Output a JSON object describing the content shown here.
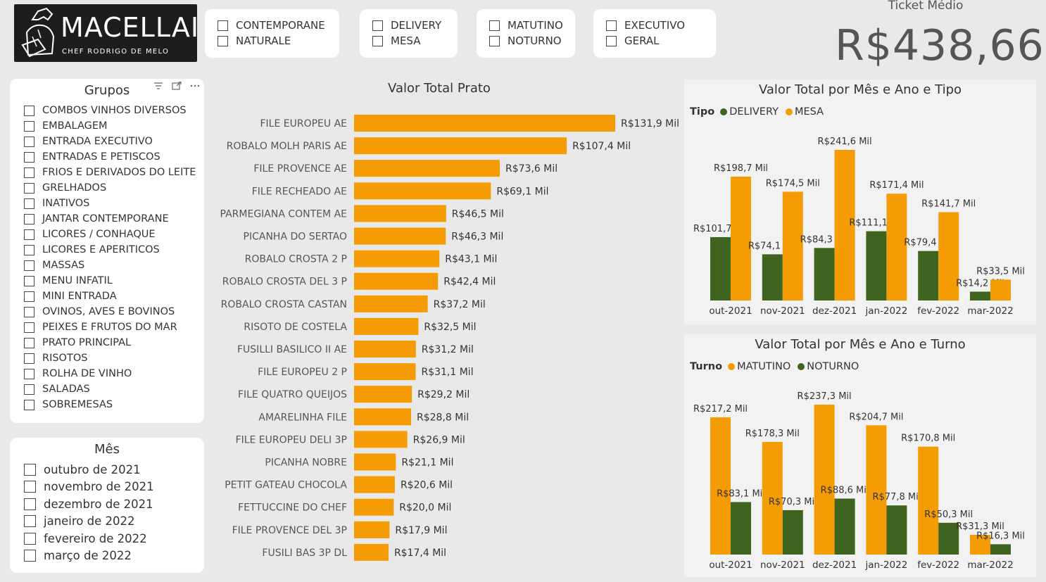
{
  "colors": {
    "orange": "#f59c05",
    "green": "#3e6420",
    "kpi_text": "#555555"
  },
  "logo": {
    "brand": "MACELLAIO",
    "subtitle": "CHEF RODRIGO DE MELO",
    "icon": "chef-icon"
  },
  "top_slicers": [
    {
      "options": [
        "CONTEMPORANE",
        "NATURALE"
      ]
    },
    {
      "options": [
        "DELIVERY",
        "MESA"
      ]
    },
    {
      "options": [
        "MATUTINO",
        "NOTURNO"
      ]
    },
    {
      "options": [
        "EXECUTIVO",
        "GERAL"
      ]
    }
  ],
  "kpi": {
    "label": "Ticket Médio",
    "value": "R$438,66"
  },
  "grupos": {
    "title": "Grupos",
    "icons": [
      "filter-icon",
      "focus-mode-icon",
      "more-options-icon"
    ],
    "items": [
      "COMBOS VINHOS DIVERSOS",
      "EMBALAGEM",
      "ENTRADA EXECUTIVO",
      "ENTRADAS E PETISCOS",
      "FRIOS E DERIVADOS DO LEITE",
      "GRELHADOS",
      "INATIVOS",
      "JANTAR CONTEMPORANE",
      "LICORES / CONHAQUE",
      "LICORES E APERITICOS",
      "MASSAS",
      "MENU INFATIL",
      "MINI ENTRADA",
      "OVINOS, AVES E BOVINOS",
      "PEIXES E FRUTOS DO MAR",
      "PRATO PRINCIPAL",
      "RISOTOS",
      "ROLHA DE VINHO",
      "SALADAS",
      "SOBREMESAS"
    ]
  },
  "mes": {
    "title": "Mês",
    "items": [
      "outubro de 2021",
      "novembro de 2021",
      "dezembro de 2021",
      "janeiro de 2022",
      "fevereiro de 2022",
      "março de 2022"
    ]
  },
  "chart_data": [
    {
      "type": "bar",
      "orientation": "horizontal",
      "title": "Valor Total Prato",
      "categories": [
        "FILE EUROPEU AE",
        "ROBALO MOLH PARIS AE",
        "FILE PROVENCE AE",
        "FILE RECHEADO AE",
        "PARMEGIANA CONTEM AE",
        "PICANHA DO SERTAO",
        "ROBALO CROSTA 2 P",
        "ROBALO CROSTA DEL 3 P",
        "ROBALO CROSTA CASTAN",
        "RISOTO DE COSTELA",
        "FUSILLI BASILICO II AE",
        "FILE EUROPEU 2 P",
        "FILE QUATRO QUEIJOS",
        "AMARELINHA FILE",
        "FILE EUROPEU DELI 3P",
        "PICANHA NOBRE",
        "PETIT GATEAU CHOCOLA",
        "FETTUCCINE DO CHEF",
        "FILE PROVENCE DEL 3P",
        "FUSILI BAS 3P DL"
      ],
      "values": [
        131.9,
        107.4,
        73.6,
        69.1,
        46.5,
        46.3,
        43.1,
        42.4,
        37.2,
        32.5,
        31.2,
        31.1,
        29.2,
        28.8,
        26.9,
        21.1,
        20.6,
        20.0,
        17.9,
        17.4
      ],
      "labels": [
        "R$131,9 Mil",
        "R$107,4 Mil",
        "R$73,6 Mil",
        "R$69,1 Mil",
        "R$46,5 Mil",
        "R$46,3 Mil",
        "R$43,1 Mil",
        "R$42,4 Mil",
        "R$37,2 Mil",
        "R$32,5 Mil",
        "R$31,2 Mil",
        "R$31,1 Mil",
        "R$29,2 Mil",
        "R$28,8 Mil",
        "R$26,9 Mil",
        "R$21,1 Mil",
        "R$20,6 Mil",
        "R$20,0 Mil",
        "R$17,9 Mil",
        "R$17,4 Mil"
      ]
    },
    {
      "type": "bar",
      "title": "Valor Total por Mês e Ano e Tipo",
      "legend_title": "Tipo",
      "categories": [
        "out-2021",
        "nov-2021",
        "dez-2021",
        "jan-2022",
        "fev-2022",
        "mar-2022"
      ],
      "series": [
        {
          "name": "DELIVERY",
          "color": "#3e6420",
          "values": [
            101.7,
            74.1,
            84.3,
            111.1,
            79.4,
            14.2
          ],
          "labels": [
            "R$101,7 Mil",
            "R$74,1 Mil",
            "R$84,3 Mil",
            "R$111,1 Mil",
            "R$79,4 Mil",
            "R$14,2 Mil"
          ]
        },
        {
          "name": "MESA",
          "color": "#f59c05",
          "values": [
            198.7,
            174.5,
            241.6,
            171.4,
            141.7,
            33.5
          ],
          "labels": [
            "R$198,7 Mil",
            "R$174,5 Mil",
            "R$241,6 Mil",
            "R$171,4 Mil",
            "R$141,7 Mil",
            "R$33,5 Mil"
          ]
        }
      ]
    },
    {
      "type": "bar",
      "title": "Valor Total por Mês e Ano e Turno",
      "legend_title": "Turno",
      "categories": [
        "out-2021",
        "nov-2021",
        "dez-2021",
        "jan-2022",
        "fev-2022",
        "mar-2022"
      ],
      "series": [
        {
          "name": "MATUTINO",
          "color": "#f59c05",
          "values": [
            217.2,
            178.3,
            237.3,
            204.7,
            170.8,
            31.3
          ],
          "labels": [
            "R$217,2 Mil",
            "R$178,3 Mil",
            "R$237,3 Mil",
            "R$204,7 Mil",
            "R$170,8 Mil",
            "R$31,3 Mil"
          ]
        },
        {
          "name": "NOTURNO",
          "color": "#3e6420",
          "values": [
            83.1,
            70.3,
            88.6,
            77.8,
            50.3,
            16.3
          ],
          "labels": [
            "R$83,1 Mil",
            "R$70,3 Mil",
            "R$88,6 Mil",
            "R$77,8 Mil",
            "R$50,3 Mil",
            "R$16,3 Mil"
          ]
        }
      ]
    }
  ]
}
